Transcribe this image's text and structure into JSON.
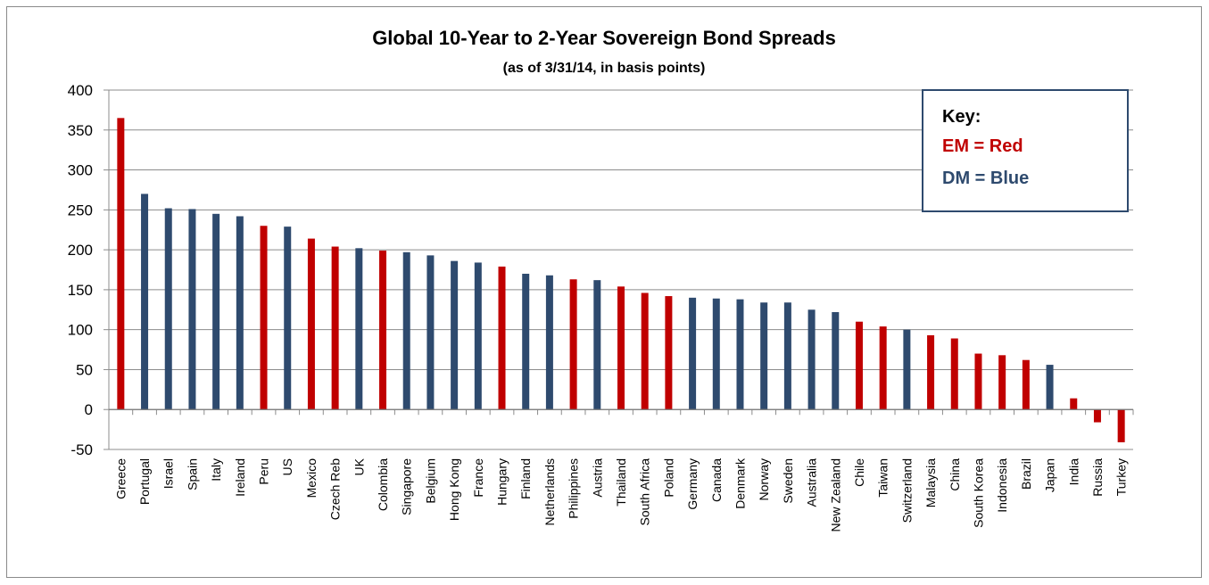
{
  "chart_data": {
    "type": "bar",
    "title": "Global 10-Year to 2-Year Sovereign Bond Spreads",
    "subtitle": "(as of 3/31/14, in basis points)",
    "xlabel": "",
    "ylabel": "",
    "ylim": [
      -50,
      400
    ],
    "yticks": [
      400,
      350,
      300,
      250,
      200,
      150,
      100,
      50,
      0,
      -50
    ],
    "grid": true,
    "colors": {
      "EM": "#c00000",
      "DM": "#2e4a6e"
    },
    "key": {
      "title": "Key:",
      "em_label": "EM = Red",
      "dm_label": "DM = Blue",
      "placement": "top-right"
    },
    "categories": [
      "Greece",
      "Portugal",
      "Israel",
      "Spain",
      "Italy",
      "Ireland",
      "Peru",
      "US",
      "Mexico",
      "Czech Reb",
      "UK",
      "Colombia",
      "Singapore",
      "Belgium",
      "Hong Kong",
      "France",
      "Hungary",
      "Finland",
      "Netherlands",
      "Philippines",
      "Austria",
      "Thailand",
      "South Africa",
      "Poland",
      "Germany",
      "Canada",
      "Denmark",
      "Norway",
      "Sweden",
      "Australia",
      "New Zealand",
      "Chile",
      "Taiwan",
      "Switzerland",
      "Malaysia",
      "China",
      "South Korea",
      "Indonesia",
      "Brazil",
      "Japan",
      "India",
      "Russia",
      "Turkey"
    ],
    "values": [
      365,
      270,
      252,
      251,
      245,
      242,
      230,
      229,
      214,
      204,
      202,
      199,
      197,
      193,
      186,
      184,
      179,
      170,
      168,
      163,
      162,
      154,
      146,
      142,
      140,
      139,
      138,
      134,
      134,
      125,
      122,
      110,
      104,
      100,
      93,
      89,
      70,
      68,
      62,
      56,
      14,
      -16,
      -41
    ],
    "groups": [
      "EM",
      "DM",
      "DM",
      "DM",
      "DM",
      "DM",
      "EM",
      "DM",
      "EM",
      "EM",
      "DM",
      "EM",
      "DM",
      "DM",
      "DM",
      "DM",
      "EM",
      "DM",
      "DM",
      "EM",
      "DM",
      "EM",
      "EM",
      "EM",
      "DM",
      "DM",
      "DM",
      "DM",
      "DM",
      "DM",
      "DM",
      "EM",
      "EM",
      "DM",
      "EM",
      "EM",
      "EM",
      "EM",
      "EM",
      "DM",
      "EM",
      "EM",
      "EM"
    ]
  }
}
